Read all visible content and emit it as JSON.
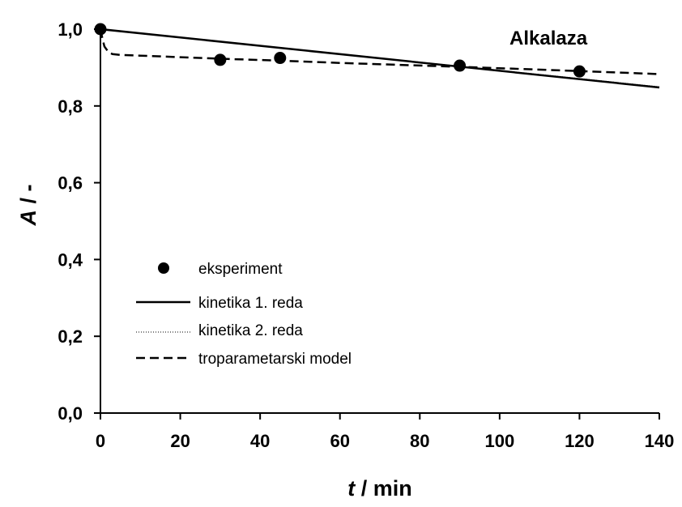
{
  "chart_data": {
    "type": "line",
    "title": "Alkalaza",
    "xlabel": {
      "var": "t",
      "unit": " / min"
    },
    "ylabel": {
      "var": "A",
      "unit": " / -"
    },
    "xlim": [
      0,
      140
    ],
    "ylim": [
      0,
      1.0
    ],
    "x_ticks": [
      "0",
      "20",
      "40",
      "60",
      "80",
      "100",
      "120",
      "140"
    ],
    "y_ticks": [
      "0,0",
      "0,2",
      "0,4",
      "0,6",
      "0,8",
      "1,0"
    ],
    "grid": false,
    "legend_position": "bottom-left",
    "series": [
      {
        "name": "eksperiment",
        "style": "markers",
        "x": [
          0,
          30,
          45,
          90,
          120
        ],
        "y": [
          1.0,
          0.92,
          0.925,
          0.905,
          0.89
        ]
      },
      {
        "name": "kinetika 1. reda",
        "style": "solid",
        "x": [
          0,
          140
        ],
        "y": [
          1.0,
          0.848
        ]
      },
      {
        "name": "kinetika 2. reda",
        "style": "dotted",
        "x": [
          0,
          140
        ],
        "y": [
          1.0,
          0.85
        ]
      },
      {
        "name": "troparametarski model",
        "style": "dashed",
        "x": [
          0,
          0.5,
          1,
          2,
          3,
          5,
          10,
          20,
          30,
          45,
          60,
          90,
          120,
          140
        ],
        "y": [
          1.0,
          0.975,
          0.955,
          0.94,
          0.935,
          0.933,
          0.931,
          0.927,
          0.923,
          0.918,
          0.912,
          0.902,
          0.891,
          0.883
        ]
      }
    ]
  }
}
